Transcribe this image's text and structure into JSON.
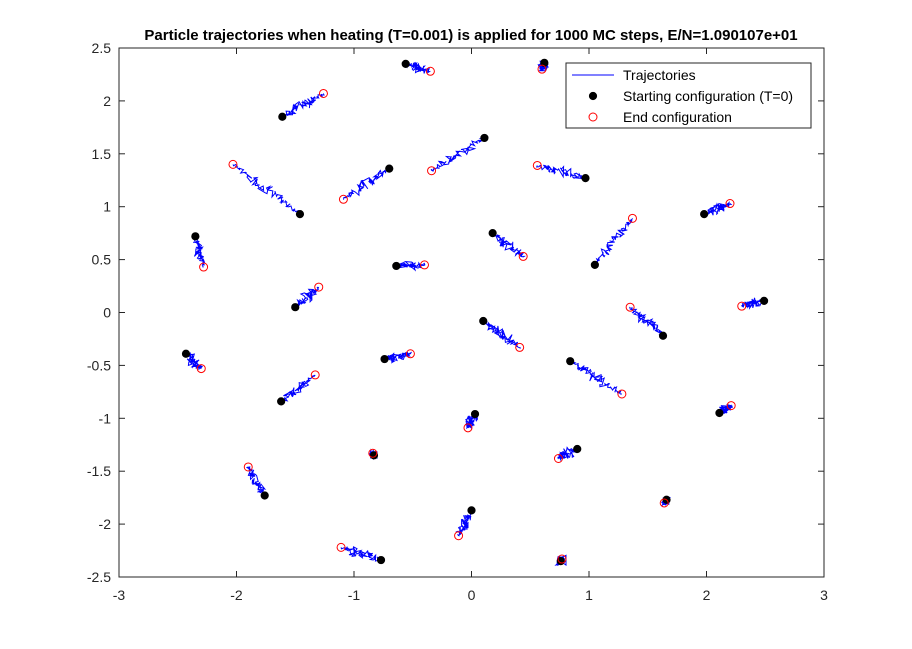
{
  "chart_data": {
    "type": "scatter",
    "title": "Particle trajectories when heating (T=0.001) is applied for 1000 MC steps, E/N=1.090107e+01",
    "xlabel": "",
    "ylabel": "",
    "xlim": [
      -3,
      3
    ],
    "ylim": [
      -2.5,
      2.5
    ],
    "xticks": [
      -3,
      -2,
      -1,
      0,
      1,
      2,
      3
    ],
    "yticks": [
      -2.5,
      -2,
      -1.5,
      -1,
      -0.5,
      0,
      0.5,
      1,
      1.5,
      2,
      2.5
    ],
    "xtick_labels": [
      "-3",
      "-2",
      "-1",
      "0",
      "1",
      "2",
      "3"
    ],
    "ytick_labels": [
      "-2.5",
      "-2",
      "-1.5",
      "-1",
      "-0.5",
      "0",
      "0.5",
      "1",
      "1.5",
      "2",
      "2.5"
    ],
    "grid": false,
    "box": true,
    "legend": {
      "location": "top-right",
      "entries": [
        {
          "label": "Trajectories",
          "marker": "line",
          "color": "#0000ff"
        },
        {
          "label": "Starting configuration (T=0)",
          "marker": "filled-circle",
          "color": "#000000"
        },
        {
          "label": "End configuration",
          "marker": "open-circle",
          "color": "#ff0000"
        }
      ]
    },
    "series": [
      {
        "name": "Starting configuration (T=0)",
        "color": "#000000",
        "marker": "filled-circle",
        "points": [
          [
            -0.56,
            2.35
          ],
          [
            -1.61,
            1.85
          ],
          [
            0.62,
            2.36
          ],
          [
            0.11,
            1.65
          ],
          [
            -0.7,
            1.36
          ],
          [
            0.97,
            1.27
          ],
          [
            -1.46,
            0.93
          ],
          [
            1.98,
            0.93
          ],
          [
            -2.35,
            0.72
          ],
          [
            0.18,
            0.75
          ],
          [
            -0.64,
            0.44
          ],
          [
            1.05,
            0.45
          ],
          [
            -1.5,
            0.05
          ],
          [
            2.49,
            0.11
          ],
          [
            0.1,
            -0.08
          ],
          [
            1.63,
            -0.22
          ],
          [
            -2.43,
            -0.39
          ],
          [
            -0.74,
            -0.44
          ],
          [
            0.84,
            -0.46
          ],
          [
            -1.62,
            -0.84
          ],
          [
            2.11,
            -0.95
          ],
          [
            0.03,
            -0.96
          ],
          [
            -0.83,
            -1.35
          ],
          [
            0.9,
            -1.29
          ],
          [
            -1.76,
            -1.73
          ],
          [
            0.0,
            -1.87
          ],
          [
            1.66,
            -1.77
          ],
          [
            -0.77,
            -2.34
          ],
          [
            0.76,
            -2.35
          ]
        ]
      },
      {
        "name": "End configuration",
        "color": "#ff0000",
        "marker": "open-circle",
        "points": [
          [
            -0.35,
            2.28
          ],
          [
            -1.26,
            2.07
          ],
          [
            0.6,
            2.3
          ],
          [
            -0.34,
            1.34
          ],
          [
            -1.09,
            1.07
          ],
          [
            0.56,
            1.39
          ],
          [
            -2.03,
            1.4
          ],
          [
            2.2,
            1.03
          ],
          [
            -2.28,
            0.43
          ],
          [
            0.44,
            0.53
          ],
          [
            -0.4,
            0.45
          ],
          [
            1.37,
            0.89
          ],
          [
            -1.3,
            0.24
          ],
          [
            2.3,
            0.06
          ],
          [
            0.41,
            -0.33
          ],
          [
            1.35,
            0.05
          ],
          [
            -2.3,
            -0.53
          ],
          [
            -0.52,
            -0.39
          ],
          [
            1.28,
            -0.77
          ],
          [
            -1.33,
            -0.59
          ],
          [
            2.21,
            -0.88
          ],
          [
            -0.03,
            -1.09
          ],
          [
            -0.84,
            -1.33
          ],
          [
            0.74,
            -1.38
          ],
          [
            -1.9,
            -1.46
          ],
          [
            -0.11,
            -2.11
          ],
          [
            1.64,
            -1.8
          ],
          [
            -1.11,
            -2.22
          ],
          [
            0.77,
            -2.33
          ]
        ]
      }
    ],
    "trajectory_color": "#0000ff"
  }
}
